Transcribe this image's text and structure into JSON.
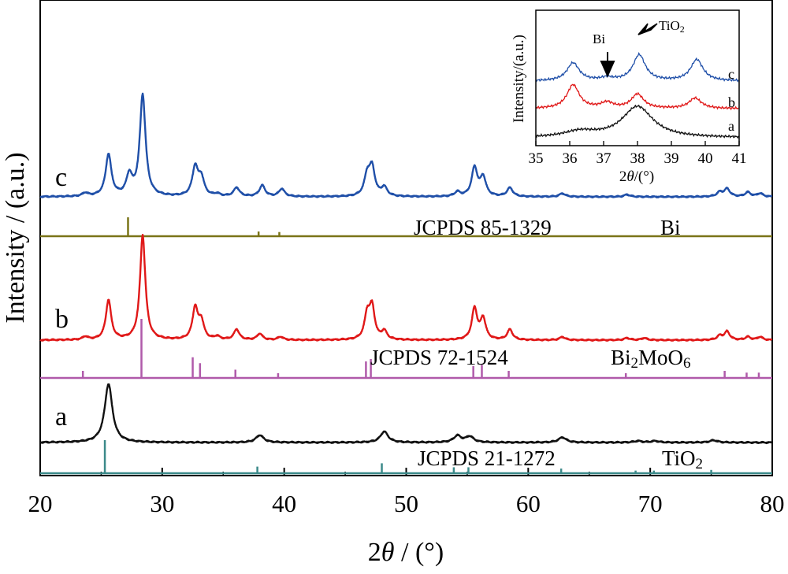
{
  "chart_data": [
    {
      "type": "line",
      "xlabel_prefix": "2",
      "xlabel_theta": "θ",
      "xlabel_suffix": " / (°)",
      "ylabel": "Intensity / (a.u.)",
      "xlim": [
        20,
        80
      ],
      "x_ticks": [
        "20",
        "30",
        "40",
        "50",
        "60",
        "70",
        "80"
      ],
      "series": [
        {
          "name": "c",
          "color": "#1f4fa8",
          "peaks": [
            [
              23.7,
              0.03
            ],
            [
              25.6,
              0.38
            ],
            [
              27.3,
              0.18
            ],
            [
              28.4,
              0.92
            ],
            [
              32.7,
              0.26
            ],
            [
              33.2,
              0.16
            ],
            [
              34.5,
              0.02
            ],
            [
              36.1,
              0.08
            ],
            [
              38.2,
              0.1
            ],
            [
              39.8,
              0.07
            ],
            [
              46.8,
              0.18
            ],
            [
              47.2,
              0.25
            ],
            [
              48.2,
              0.08
            ],
            [
              54.2,
              0.04
            ],
            [
              55.6,
              0.26
            ],
            [
              56.3,
              0.17
            ],
            [
              58.5,
              0.08
            ],
            [
              62.8,
              0.03
            ],
            [
              68.1,
              0.02
            ],
            [
              75.7,
              0.04
            ],
            [
              76.3,
              0.07
            ],
            [
              78.0,
              0.04
            ],
            [
              79.0,
              0.03
            ]
          ]
        },
        {
          "name": "b",
          "color": "#e01818",
          "peaks": [
            [
              23.7,
              0.03
            ],
            [
              25.6,
              0.38
            ],
            [
              28.4,
              1.0
            ],
            [
              32.7,
              0.3
            ],
            [
              33.2,
              0.17
            ],
            [
              34.5,
              0.03
            ],
            [
              36.1,
              0.1
            ],
            [
              38.0,
              0.06
            ],
            [
              39.7,
              0.03
            ],
            [
              46.8,
              0.23
            ],
            [
              47.2,
              0.3
            ],
            [
              48.2,
              0.08
            ],
            [
              55.6,
              0.3
            ],
            [
              56.3,
              0.2
            ],
            [
              58.5,
              0.1
            ],
            [
              62.8,
              0.03
            ],
            [
              68.1,
              0.02
            ],
            [
              69.5,
              0.02
            ],
            [
              75.7,
              0.04
            ],
            [
              76.3,
              0.08
            ],
            [
              78.0,
              0.03
            ],
            [
              79.0,
              0.03
            ]
          ]
        },
        {
          "name": "a",
          "color": "#111111",
          "peaks": [
            [
              25.6,
              0.8
            ],
            [
              38.0,
              0.1
            ],
            [
              48.2,
              0.15
            ],
            [
              54.2,
              0.09
            ],
            [
              55.2,
              0.08
            ],
            [
              62.8,
              0.07
            ],
            [
              69.0,
              0.02
            ],
            [
              70.4,
              0.02
            ],
            [
              75.2,
              0.03
            ]
          ]
        }
      ],
      "references": [
        {
          "label": "JCPDS 85-1329",
          "phase": "Bi",
          "color": "#7a7418",
          "lines": [
            [
              27.2,
              1.0
            ],
            [
              37.9,
              0.25
            ],
            [
              39.6,
              0.22
            ]
          ]
        },
        {
          "label": "JCPDS 72-1524",
          "phase_main": "Bi",
          "phase_sub1": "2",
          "phase_mid": "MoO",
          "phase_sub2": "6",
          "color": "#b05aaa",
          "lines": [
            [
              23.5,
              0.12
            ],
            [
              28.3,
              1.0
            ],
            [
              32.5,
              0.35
            ],
            [
              33.1,
              0.25
            ],
            [
              36.0,
              0.14
            ],
            [
              39.5,
              0.08
            ],
            [
              46.7,
              0.28
            ],
            [
              47.1,
              0.32
            ],
            [
              55.5,
              0.2
            ],
            [
              56.2,
              0.22
            ],
            [
              58.4,
              0.12
            ],
            [
              68.0,
              0.08
            ],
            [
              76.1,
              0.12
            ],
            [
              77.9,
              0.09
            ],
            [
              78.9,
              0.09
            ]
          ]
        },
        {
          "label": "JCPDS 21-1272",
          "phase_main": "TiO",
          "phase_sub": "2",
          "color": "#3c8a8a",
          "lines": [
            [
              25.3,
              1.0
            ],
            [
              37.8,
              0.2
            ],
            [
              48.0,
              0.3
            ],
            [
              53.9,
              0.18
            ],
            [
              55.1,
              0.18
            ],
            [
              62.7,
              0.14
            ],
            [
              68.8,
              0.08
            ],
            [
              70.3,
              0.08
            ],
            [
              75.0,
              0.1
            ]
          ]
        }
      ]
    },
    {
      "type": "line",
      "xlabel_prefix": "2",
      "xlabel_theta": "θ",
      "xlabel_suffix": "/(°)",
      "ylabel": "Intensity/(a.u.)",
      "xlim": [
        35,
        41
      ],
      "x_ticks": [
        "35",
        "36",
        "37",
        "38",
        "39",
        "40",
        "41"
      ],
      "series": [
        {
          "name": "c",
          "color": "#1f4fa8",
          "peaks": [
            [
              36.1,
              0.38
            ],
            [
              37.1,
              0.06
            ],
            [
              38.05,
              0.55
            ],
            [
              39.75,
              0.45
            ]
          ]
        },
        {
          "name": "b",
          "color": "#e01818",
          "peaks": [
            [
              36.1,
              0.5
            ],
            [
              37.1,
              0.12
            ],
            [
              38.0,
              0.3
            ],
            [
              39.7,
              0.22
            ]
          ]
        },
        {
          "name": "a",
          "color": "#111111",
          "peaks": [
            [
              36.3,
              0.1
            ],
            [
              38.0,
              0.55
            ]
          ]
        }
      ],
      "annotations": [
        {
          "text": "Bi",
          "x": 37.1
        },
        {
          "text_main": "TiO",
          "text_sub": "2",
          "x": 38.05
        }
      ]
    }
  ]
}
